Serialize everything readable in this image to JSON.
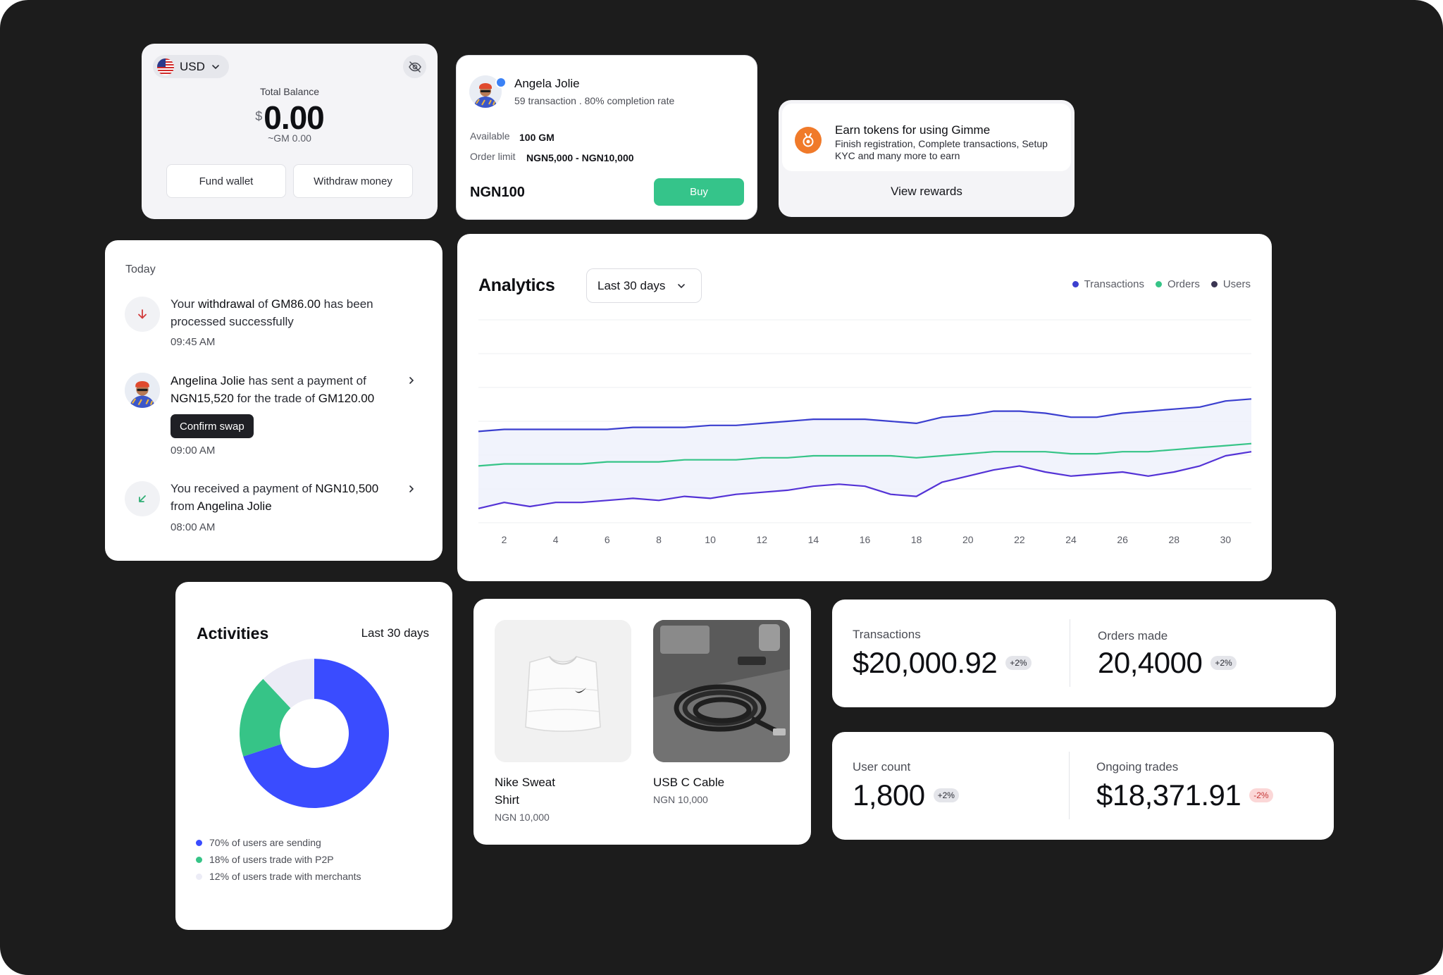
{
  "wallet": {
    "currency": "USD",
    "total_label": "Total Balance",
    "currency_symbol": "$",
    "amount": "0.00",
    "sub_amount": "~GM 0.00",
    "fund_label": "Fund wallet",
    "withdraw_label": "Withdraw money"
  },
  "seller": {
    "name": "Angela Jolie",
    "meta": "59 transaction . 80% completion rate",
    "available_label": "Available",
    "available_value": "100 GM",
    "limit_label": "Order limit",
    "limit_value": "NGN5,000 - NGN10,000",
    "price": "NGN100",
    "buy_label": "Buy"
  },
  "rewards": {
    "title": "Earn tokens for using Gimme",
    "description": "Finish registration, Complete transactions, Setup KYC and many more to earn",
    "link_label": "View rewards"
  },
  "notifications": {
    "heading": "Today",
    "items": [
      {
        "parts": [
          "Your ",
          "withdrawal",
          " of ",
          "GM86.00",
          " has been processed successfully"
        ],
        "time": "09:45 AM"
      },
      {
        "parts": [
          "Angelina Jolie",
          " has sent a payment of ",
          "NGN15,520",
          " for the trade of ",
          "GM120.00"
        ],
        "action_label": "Confirm swap",
        "time": "09:00 AM"
      },
      {
        "parts": [
          "You received a payment of ",
          "NGN10,500",
          " from ",
          "Angelina Jolie"
        ],
        "time": "08:00 AM"
      }
    ]
  },
  "analytics": {
    "title": "Analytics",
    "range": "Last 30 days",
    "colors": {
      "transactions": "#3b3fcf",
      "orders": "#36c487",
      "users": "#5433d6"
    }
  },
  "chart_data": {
    "type": "line",
    "title": "Analytics",
    "xlabel": "",
    "ylabel": "",
    "x_ticks": [
      2,
      4,
      6,
      8,
      10,
      12,
      14,
      16,
      18,
      20,
      22,
      24,
      26,
      28,
      30
    ],
    "xlim": [
      1,
      31
    ],
    "ylim": [
      0,
      100
    ],
    "grid": true,
    "legend_position": "top-right",
    "series": [
      {
        "name": "Transactions",
        "color": "#3b3fcf",
        "x": [
          1,
          2,
          3,
          4,
          5,
          6,
          7,
          8,
          9,
          10,
          11,
          12,
          13,
          14,
          15,
          16,
          17,
          18,
          19,
          20,
          21,
          22,
          23,
          24,
          25,
          26,
          27,
          28,
          29,
          30,
          31
        ],
        "values": [
          45,
          46,
          46,
          46,
          46,
          46,
          47,
          47,
          47,
          48,
          48,
          49,
          50,
          51,
          51,
          51,
          50,
          49,
          52,
          53,
          55,
          55,
          54,
          52,
          52,
          54,
          55,
          56,
          57,
          60,
          61
        ]
      },
      {
        "name": "Orders",
        "color": "#36c487",
        "x": [
          1,
          2,
          3,
          4,
          5,
          6,
          7,
          8,
          9,
          10,
          11,
          12,
          13,
          14,
          15,
          16,
          17,
          18,
          19,
          20,
          21,
          22,
          23,
          24,
          25,
          26,
          27,
          28,
          29,
          30,
          31
        ],
        "values": [
          28,
          29,
          29,
          29,
          29,
          30,
          30,
          30,
          31,
          31,
          31,
          32,
          32,
          33,
          33,
          33,
          33,
          32,
          33,
          34,
          35,
          35,
          35,
          34,
          34,
          35,
          35,
          36,
          37,
          38,
          39
        ]
      },
      {
        "name": "Users",
        "color": "#5433d6",
        "x": [
          1,
          2,
          3,
          4,
          5,
          6,
          7,
          8,
          9,
          10,
          11,
          12,
          13,
          14,
          15,
          16,
          17,
          18,
          19,
          20,
          21,
          22,
          23,
          24,
          25,
          26,
          27,
          28,
          29,
          30,
          31
        ],
        "values": [
          7,
          10,
          8,
          10,
          10,
          11,
          12,
          11,
          13,
          12,
          14,
          15,
          16,
          18,
          19,
          18,
          14,
          13,
          20,
          23,
          26,
          28,
          25,
          23,
          24,
          25,
          23,
          25,
          28,
          33,
          35
        ]
      }
    ]
  },
  "activities": {
    "title": "Activities",
    "range": "Last 30 days",
    "chart_data": {
      "type": "pie",
      "values": [
        70,
        18,
        12
      ],
      "colors": [
        "#3a4cff",
        "#36c487",
        "#ececf6"
      ],
      "labels": [
        "70% of users are sending",
        "18% of users trade with P2P",
        "12% of users trade with merchants"
      ]
    },
    "legend_colors": [
      "#3a4cff",
      "#36c487",
      "#ececf6"
    ]
  },
  "products": [
    {
      "name_line1": "Nike Sweat",
      "name_line2": "Shirt",
      "price": "NGN 10,000"
    },
    {
      "name": "USB C Cable",
      "price": "NGN 10,000"
    }
  ],
  "stats": [
    {
      "label": "Transactions",
      "value": "$20,000.92",
      "change": "+2%"
    },
    {
      "label": "Orders made",
      "value": "20,4000",
      "change": "+2%"
    },
    {
      "label": "User count",
      "value": "1,800",
      "change": "+2%"
    },
    {
      "label": "Ongoing trades",
      "value": "$18,371.91",
      "change": "-2%"
    }
  ]
}
